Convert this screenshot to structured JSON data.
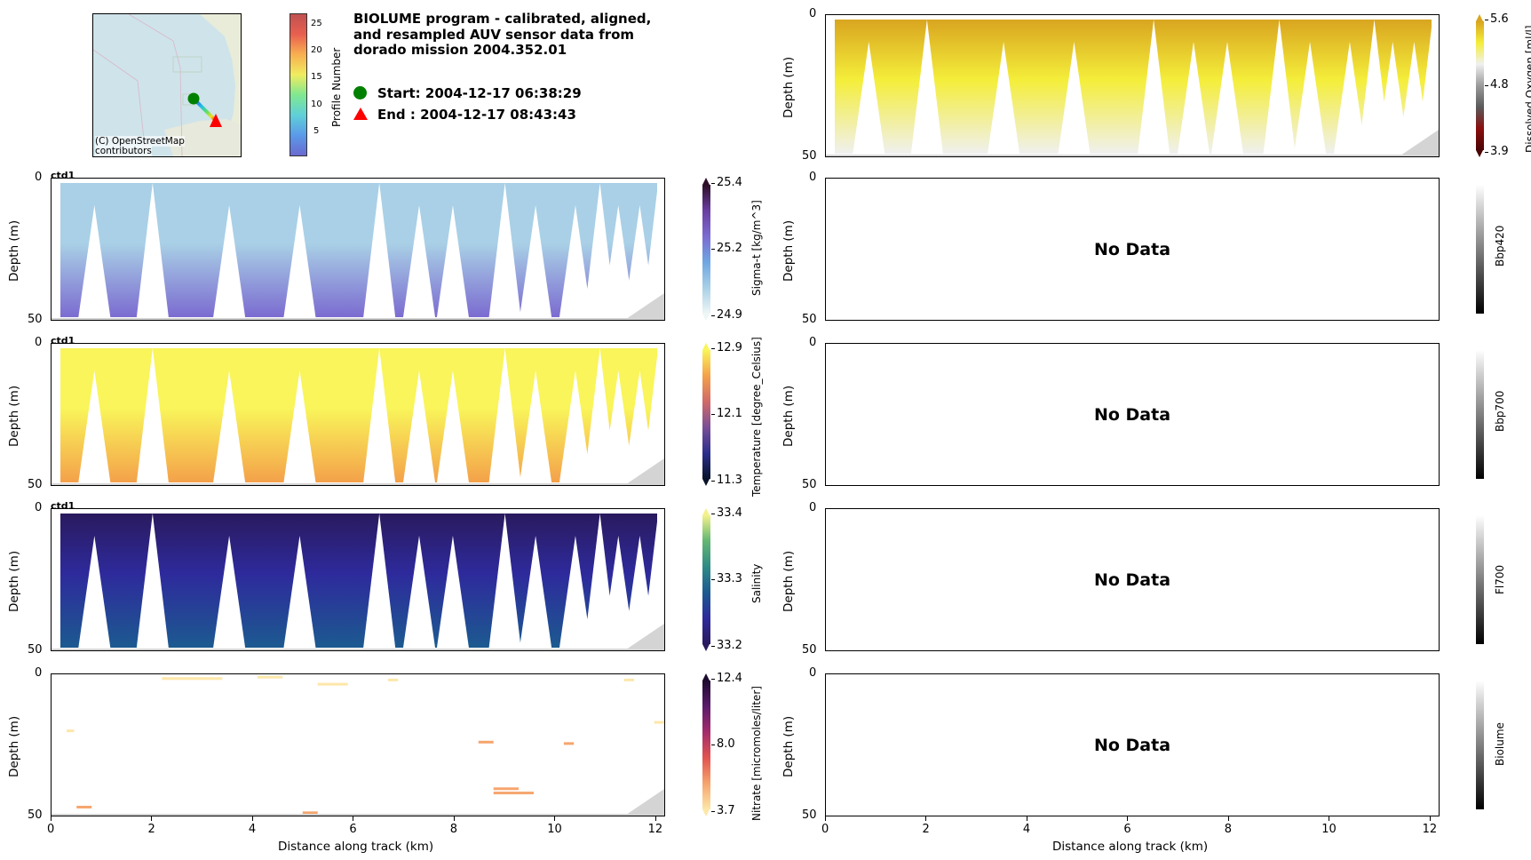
{
  "header": {
    "title_lines": [
      "BIOLUME program - calibrated, aligned,",
      "and resampled AUV sensor data from",
      "dorado mission 2004.352.01"
    ],
    "start_label": "Start: 2004-12-17 06:38:29",
    "end_label": "End  : 2004-12-17 08:43:43",
    "start_marker_color": "#008000",
    "end_marker_color": "#ff0000"
  },
  "map": {
    "credit_line1": "(C) OpenStreetMap",
    "credit_line2": "contributors",
    "water_color": "#cfe3ea",
    "profile_colorbar": {
      "label": "Profile Number",
      "ticks": [
        "5",
        "10",
        "15",
        "20",
        "25"
      ],
      "range": [
        1,
        28
      ]
    }
  },
  "common": {
    "ylabel": "Depth (m)",
    "xlabel": "Distance along track (km)",
    "y_ticks": [
      "0",
      "50"
    ],
    "x_ticks": [
      "0",
      "2",
      "4",
      "6",
      "8",
      "10",
      "12"
    ],
    "nodata_label": "No Data",
    "ctd_label": "ctd1"
  },
  "chart_data": [
    {
      "type": "heatmap",
      "id": "sigma_t",
      "title": "",
      "xlabel": "Distance along track (km)",
      "ylabel": "Depth (m)",
      "xlim": [
        0,
        12.2
      ],
      "ylim": [
        50,
        0
      ],
      "annotation": "ctd1",
      "colorbar": {
        "label": "Sigma-t [kg/m^3]",
        "ticks": [
          "24.9",
          "25.2",
          "25.4"
        ],
        "range": [
          24.9,
          25.4
        ],
        "colors": [
          "#eef6f6",
          "#a9d0e6",
          "#6fa6e2",
          "#7b6bd0",
          "#6a3ea0",
          "#2e0f28"
        ]
      },
      "surface_value": 24.95,
      "bottom_value": 25.2
    },
    {
      "type": "heatmap",
      "id": "temperature",
      "title": "",
      "xlabel": "Distance along track (km)",
      "ylabel": "Depth (m)",
      "xlim": [
        0,
        12.2
      ],
      "ylim": [
        50,
        0
      ],
      "annotation": "ctd1",
      "colorbar": {
        "label": "Temperature [degree_Celsius]",
        "ticks": [
          "11.3",
          "12.1",
          "12.9"
        ],
        "range": [
          11.3,
          12.9
        ],
        "colors": [
          "#08132b",
          "#2b2f8c",
          "#7a4f96",
          "#d06a68",
          "#f4a14a",
          "#f9f55a"
        ]
      },
      "surface_value": 12.85,
      "bottom_value": 12.5
    },
    {
      "type": "heatmap",
      "id": "salinity",
      "title": "",
      "xlabel": "Distance along track (km)",
      "ylabel": "Depth (m)",
      "xlim": [
        0,
        12.2
      ],
      "ylim": [
        50,
        0
      ],
      "annotation": "ctd1",
      "colorbar": {
        "label": "Salinity",
        "ticks": [
          "33.2",
          "33.3",
          "33.4"
        ],
        "range": [
          33.2,
          33.4
        ],
        "colors": [
          "#2a1a5e",
          "#2e2a9c",
          "#1c5a90",
          "#2f8a86",
          "#62b672",
          "#f3f18c"
        ]
      },
      "surface_value": 33.2,
      "bottom_value": 33.28
    },
    {
      "type": "heatmap",
      "id": "nitrate",
      "title": "",
      "xlabel": "Distance along track (km)",
      "ylabel": "Depth (m)",
      "xlim": [
        0,
        12.2
      ],
      "ylim": [
        50,
        0
      ],
      "colorbar": {
        "label": "Nitrate [micromoles/liter]",
        "ticks": [
          "3.7",
          "8.0",
          "12.4"
        ],
        "range": [
          3.7,
          12.4
        ],
        "colors": [
          "#fde7a9",
          "#f6a56e",
          "#e1534f",
          "#a32b6c",
          "#5a1a6a",
          "#1c0a2e"
        ]
      },
      "sparse_patches": [
        {
          "x": [
            2.2,
            3.4
          ],
          "depth": 1.5,
          "value": 4.0
        },
        {
          "x": [
            4.1,
            4.6
          ],
          "depth": 1.0,
          "value": 4.0
        },
        {
          "x": [
            5.3,
            5.9
          ],
          "depth": 3.5,
          "value": 4.5
        },
        {
          "x": [
            6.7,
            6.9
          ],
          "depth": 2.0,
          "value": 4.3
        },
        {
          "x": [
            0.3,
            0.45
          ],
          "depth": 20.0,
          "value": 3.9
        },
        {
          "x": [
            0.5,
            0.8
          ],
          "depth": 47.0,
          "value": 5.5
        },
        {
          "x": [
            5.0,
            5.3
          ],
          "depth": 49.0,
          "value": 6.0
        },
        {
          "x": [
            8.8,
            9.3
          ],
          "depth": 40.5,
          "value": 5.5
        },
        {
          "x": [
            8.8,
            9.6
          ],
          "depth": 42.0,
          "value": 5.8
        },
        {
          "x": [
            8.5,
            8.8
          ],
          "depth": 24.0,
          "value": 5.6
        },
        {
          "x": [
            10.2,
            10.4
          ],
          "depth": 24.5,
          "value": 4.8
        },
        {
          "x": [
            11.4,
            11.6
          ],
          "depth": 2.0,
          "value": 3.9
        },
        {
          "x": [
            12.0,
            12.2
          ],
          "depth": 17.0,
          "value": 4.0
        }
      ]
    },
    {
      "type": "heatmap",
      "id": "dissolved_oxygen",
      "title": "",
      "xlabel": "",
      "ylabel": "Depth (m)",
      "xlim": [
        0,
        12.2
      ],
      "ylim": [
        50,
        0
      ],
      "colorbar": {
        "label": "Dissolved Oxygen [ml/l]",
        "ticks": [
          "3.9",
          "4.8",
          "5.6"
        ],
        "range": [
          3.9,
          5.6
        ],
        "colors": [
          "#4a0505",
          "#8b0e0e",
          "#5a5a5a",
          "#9a9a9a",
          "#f0f0f0",
          "#f4ee3a",
          "#d9a520"
        ]
      },
      "surface_value": 5.5,
      "bottom_value": 4.9
    },
    {
      "type": "heatmap",
      "id": "bbp420",
      "ylabel": "Depth (m)",
      "xlim": [
        0,
        12.2
      ],
      "ylim": [
        50,
        0
      ],
      "colorbar": {
        "label": "Bbp420",
        "ticks": []
      },
      "status": "No Data"
    },
    {
      "type": "heatmap",
      "id": "bbp700",
      "ylabel": "Depth (m)",
      "xlim": [
        0,
        12.2
      ],
      "ylim": [
        50,
        0
      ],
      "colorbar": {
        "label": "Bbp700",
        "ticks": []
      },
      "status": "No Data"
    },
    {
      "type": "heatmap",
      "id": "fl700",
      "ylabel": "Depth (m)",
      "xlim": [
        0,
        12.2
      ],
      "ylim": [
        50,
        0
      ],
      "colorbar": {
        "label": "Fl700",
        "ticks": []
      },
      "status": "No Data"
    },
    {
      "type": "heatmap",
      "id": "biolume",
      "xlabel": "Distance along track (km)",
      "ylabel": "Depth (m)",
      "xlim": [
        0,
        12.2
      ],
      "ylim": [
        50,
        0
      ],
      "colorbar": {
        "label": "Biolume",
        "ticks": []
      },
      "status": "No Data"
    }
  ]
}
